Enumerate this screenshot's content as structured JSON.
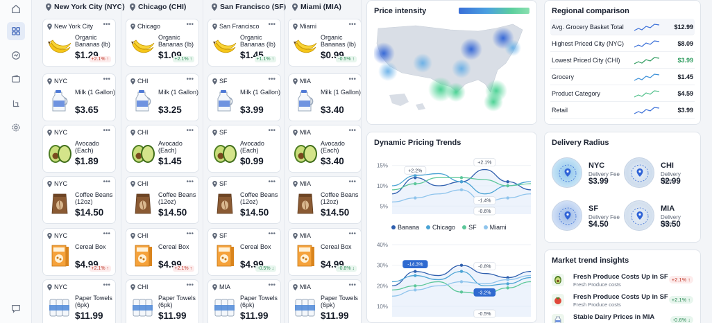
{
  "cities": [
    {
      "label": "New York City (NYC)"
    },
    {
      "label": "Chicago (CHI)"
    },
    {
      "label": "San Francisco (SF)"
    },
    {
      "label": "Miami (MIA)"
    }
  ],
  "rows": [
    {
      "name": "Organic Bananas (lb)",
      "icon": "banana-icon",
      "cells": [
        {
          "city": "New York City",
          "price": "$1.29",
          "change": "+2.1% ↑",
          "dir": "up"
        },
        {
          "city": "Chicago",
          "price": "$1.09",
          "change": "+2.1% ↑",
          "dir": "upg"
        },
        {
          "city": "San Francisco",
          "price": "$1.45",
          "change": "+1.1% ↑",
          "dir": "upg"
        },
        {
          "city": "Miami",
          "price": "$0.99",
          "change": "-0.5% ↑",
          "dir": "down"
        }
      ]
    },
    {
      "name": "Milk (1 Gallon)",
      "icon": "milk-jug-icon",
      "cells": [
        {
          "city": "NYC",
          "price": "$3.65"
        },
        {
          "city": "CHI",
          "price": "$3.25"
        },
        {
          "city": "SF",
          "price": "$3.99"
        },
        {
          "city": "MIA",
          "price": "$3.40"
        }
      ]
    },
    {
      "name": "Avocado (Each)",
      "icon": "avocado-icon",
      "cells": [
        {
          "city": "NYC",
          "price": "$1.89"
        },
        {
          "city": "CHI",
          "price": "$1.45"
        },
        {
          "city": "SF",
          "price": "$0.99"
        },
        {
          "city": "MIA",
          "price": "$3.40"
        }
      ]
    },
    {
      "name": "Coffee Beans (12oz)",
      "icon": "coffee-bag-icon",
      "cells": [
        {
          "city": "NYC",
          "price": "$14.50"
        },
        {
          "city": "CHI",
          "price": "$14.50"
        },
        {
          "city": "SF",
          "price": "$14.50"
        },
        {
          "city": "MIA",
          "price": "$14.50"
        }
      ]
    },
    {
      "name": "Cereal Box",
      "icon": "cereal-box-icon",
      "cells": [
        {
          "city": "NYC",
          "price": "$4.99",
          "change": "+2.1% ↑",
          "dir": "up"
        },
        {
          "city": "CHI",
          "price": "$4.99",
          "change": "+2.1% ↑",
          "dir": "up"
        },
        {
          "city": "SF",
          "price": "$4.99",
          "change": "-0.5% ↓",
          "dir": "down"
        },
        {
          "city": "MIA",
          "price": "$4.99",
          "change": "-0.8% ↓",
          "dir": "down"
        }
      ]
    },
    {
      "name": "Paper Towels (6pk)",
      "icon": "paper-towels-icon",
      "cells": [
        {
          "city": "NYC",
          "price": "$11.99"
        },
        {
          "city": "CHI",
          "price": "$11.99"
        },
        {
          "city": "MIA",
          "price": "$11.99"
        },
        {
          "city": "MIA",
          "price": "$11.99"
        }
      ]
    }
  ],
  "price_intensity": {
    "title": "Price intensity",
    "colors": [
      "#3a6fd8",
      "#5ccf9d"
    ]
  },
  "regional": {
    "title": "Regional comparison",
    "rows": [
      {
        "label": "Avg. Grocery Basket Total",
        "value": "$12.99",
        "accent": "#3a6fd8"
      },
      {
        "label": "Highest Priced City (NYC)",
        "value": "$8.09"
      },
      {
        "label": "Lowest Priced City (CHI)",
        "value": "$3.99",
        "accent": "#2e9b5e"
      },
      {
        "label": "Grocery",
        "value": "$1.45",
        "accent": "#3a8fd8"
      },
      {
        "label": "Product Category",
        "value": "$4.59",
        "accent": "#4fc08a"
      },
      {
        "label": "Retail",
        "value": "$3.99",
        "accent": "#3a6fd8"
      }
    ]
  },
  "trends": {
    "title": "Dynamic Pricing Trends"
  },
  "chart_data": [
    {
      "type": "line",
      "title": "Dynamic Pricing Trends",
      "ylim": [
        3,
        17
      ],
      "yticks": [
        "15%",
        "10%",
        "5%"
      ],
      "ytick_values": [
        15,
        10,
        5
      ],
      "x": [
        0,
        1,
        2,
        3,
        4,
        5,
        6
      ],
      "series": [
        {
          "name": "Banana",
          "color": "#2f5fae",
          "values": [
            8,
            12,
            10,
            11,
            14,
            11,
            9
          ]
        },
        {
          "name": "Chicago",
          "color": "#4aa3d4",
          "values": [
            10,
            12.5,
            13,
            11,
            8,
            10,
            11
          ]
        },
        {
          "name": "SF",
          "color": "#5cc79a",
          "values": [
            9,
            10.5,
            12,
            12,
            11.5,
            10,
            10.5
          ]
        },
        {
          "name": "Miami",
          "color": "#8fc4ec",
          "values": [
            6,
            7,
            8,
            9,
            6,
            7,
            8
          ]
        }
      ],
      "annotations": [
        "+2.2%",
        "+2.1%",
        "-1.4%",
        "-0.6%"
      ]
    },
    {
      "type": "line",
      "ylim": [
        5,
        42
      ],
      "yticks": [
        "40%",
        "30%",
        "20%",
        "10%"
      ],
      "ytick_values": [
        40,
        30,
        20,
        10
      ],
      "x": [
        0,
        1,
        2,
        3,
        4,
        5,
        6
      ],
      "series": [
        {
          "name": "Banana",
          "color": "#2f5fae",
          "values": [
            20,
            27,
            25,
            30,
            26,
            24,
            27
          ]
        },
        {
          "name": "Chicago",
          "color": "#4aa3d4",
          "values": [
            22,
            25,
            23,
            27,
            20,
            21,
            24
          ]
        },
        {
          "name": "SF",
          "color": "#5cc79a",
          "values": [
            18,
            20,
            22,
            17,
            16,
            19,
            22
          ]
        },
        {
          "name": "Miami",
          "color": "#8fc4ec",
          "values": [
            15,
            18,
            20,
            22,
            21,
            23,
            25
          ]
        }
      ],
      "annotations": [
        "-14.3%",
        "-0.8%",
        "-3.2%",
        "-0.5%"
      ]
    }
  ],
  "delivery": {
    "title": "Delivery Radius",
    "items": [
      {
        "city": "NYC",
        "label": "Delivery Fee",
        "price": "$3.99"
      },
      {
        "city": "CHI",
        "label": "Delivery Fees",
        "price": "$2.99"
      },
      {
        "city": "SF",
        "label": "Delivery Fee",
        "price": "$4.50"
      },
      {
        "city": "MIA",
        "label": "Delivery Fees",
        "price": "$3.50"
      }
    ]
  },
  "insights": {
    "title": "Market trend insights",
    "items": [
      {
        "title": "Fresh Produce Costs Up in SF",
        "sub": "Fresh Produce costs",
        "badge": "+2.1% ↑",
        "tone": "up"
      },
      {
        "title": "Fresh Produce Costs Up in SF",
        "sub": "Fresh Produce costs",
        "badge": "+2.1% ↑",
        "tone": "upg"
      },
      {
        "title": "Stable Dairy Prices in MIA",
        "sub": "",
        "badge": "-0.6% ↓",
        "tone": "upg"
      }
    ]
  }
}
